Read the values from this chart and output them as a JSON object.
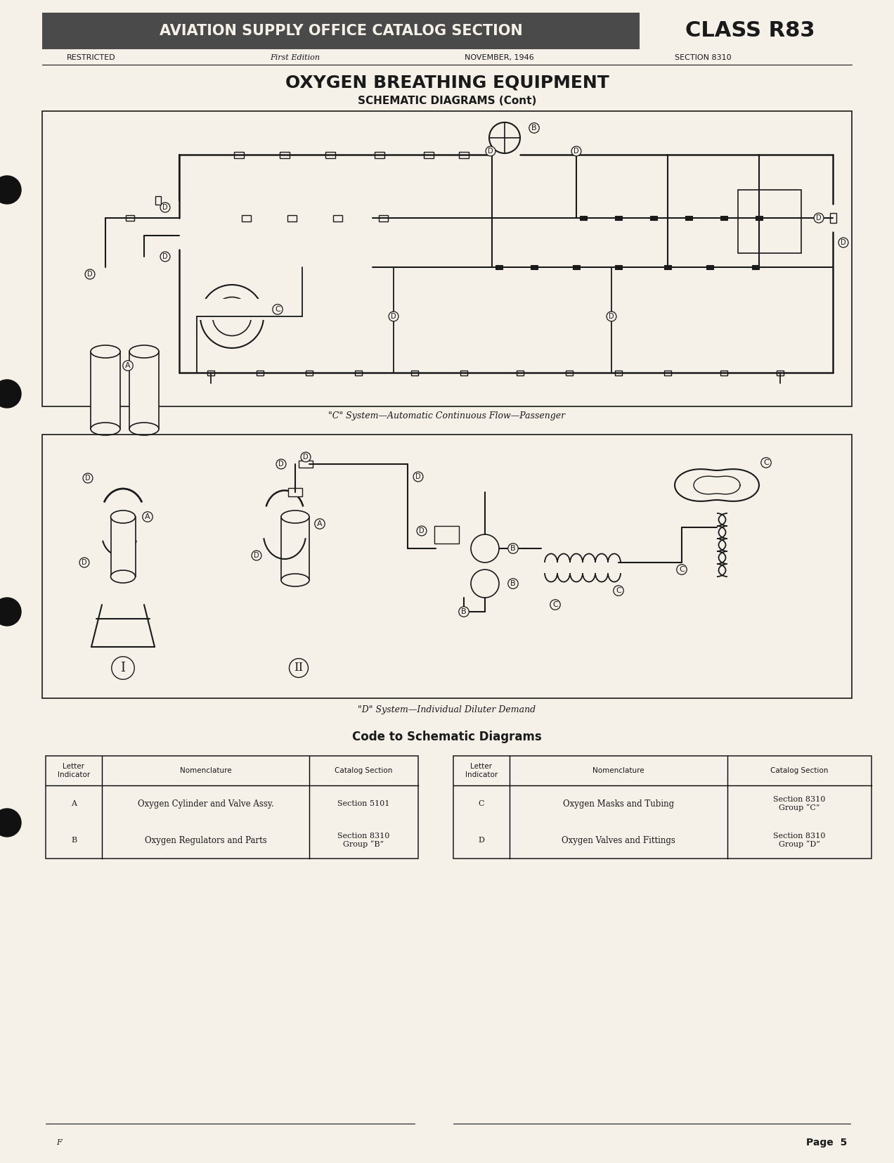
{
  "bg_color": "#f5f0e8",
  "page_bg": "#f5f0e8",
  "header_banner_color": "#4a4a4a",
  "header_banner_text": "AVIATION SUPPLY OFFICE CATALOG SECTION",
  "header_banner_text_color": "#f5f0e8",
  "class_text": "CLASS R83",
  "restricted_text": "RESTRICTED",
  "first_edition_text": "First Edition",
  "date_text": "NOVEMBER, 1946",
  "section_text": "SECTION 8310",
  "main_title": "OXYGEN BREATHING EQUIPMENT",
  "subtitle": "SCHEMATIC DIAGRAMS (Cont)",
  "diagram1_caption": "\"C\" System—Automatic Continuous Flow—Passenger",
  "diagram2_caption": "\"D\" System—Individual Diluter Demand",
  "code_section_title": "Code to Schematic Diagrams",
  "table_headers": [
    "Letter\nIndicator",
    "Nomenclature",
    "Catalog Section"
  ],
  "table_left": [
    [
      "A",
      "Oxygen Cylinder and Valve Assy.",
      "Section 5101"
    ],
    [
      "B",
      "Oxygen Regulators and Parts",
      "Section 8310\nGroup “B”"
    ]
  ],
  "table_right": [
    [
      "C",
      "Oxygen Masks and Tubing",
      "Section 8310\nGroup “C”"
    ],
    [
      "D",
      "Oxygen Valves and Fittings",
      "Section 8310\nGroup “D”"
    ]
  ],
  "page_number": "Page  5",
  "footer_left": "F"
}
